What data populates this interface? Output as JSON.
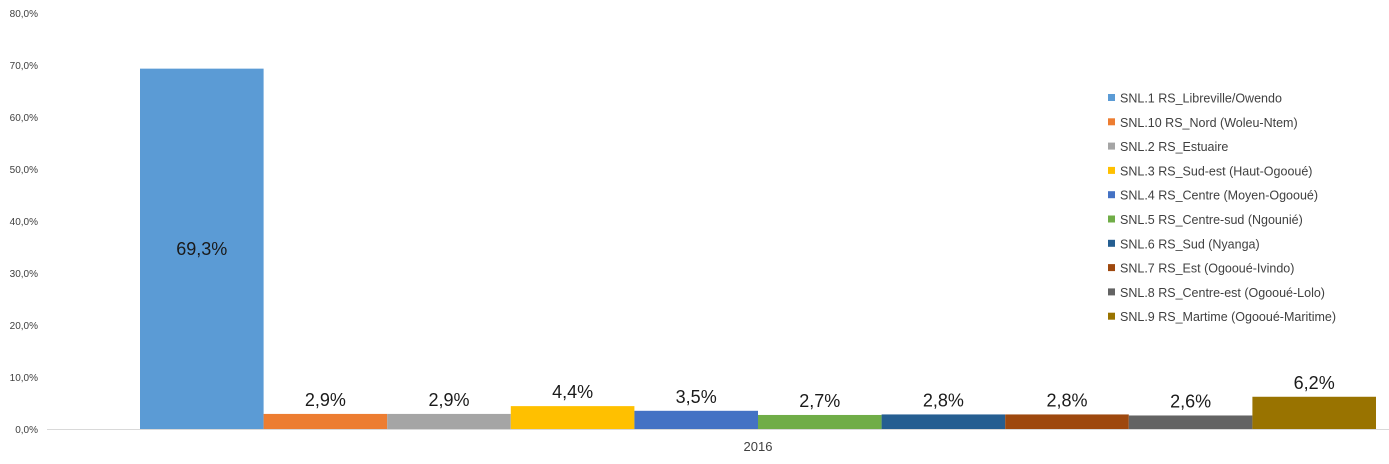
{
  "chart_data": {
    "type": "bar",
    "title": "",
    "xlabel": "",
    "ylabel": "",
    "categories": [
      "2016"
    ],
    "ylim": [
      0,
      80
    ],
    "y_ticks": [
      "0,0%",
      "10,0%",
      "20,0%",
      "30,0%",
      "40,0%",
      "50,0%",
      "60,0%",
      "70,0%",
      "80,0%"
    ],
    "grid": false,
    "legend_position": "right",
    "series": [
      {
        "name": "SNL.1 RS_Libreville/Owendo",
        "values": [
          69.3
        ],
        "label": "69,3%",
        "color": "#5B9BD5"
      },
      {
        "name": "SNL.10 RS_Nord (Woleu-Ntem)",
        "values": [
          2.9
        ],
        "label": "2,9%",
        "color": "#ED7D31"
      },
      {
        "name": "SNL.2 RS_Estuaire",
        "values": [
          2.9
        ],
        "label": "2,9%",
        "color": "#A5A5A5"
      },
      {
        "name": "SNL.3 RS_Sud-est (Haut-Ogooué)",
        "values": [
          4.4
        ],
        "label": "4,4%",
        "color": "#FFC000"
      },
      {
        "name": "SNL.4 RS_Centre (Moyen-Ogooué)",
        "values": [
          3.5
        ],
        "label": "3,5%",
        "color": "#4472C4"
      },
      {
        "name": "SNL.5 RS_Centre-sud (Ngounié)",
        "values": [
          2.7
        ],
        "label": "2,7%",
        "color": "#70AD47"
      },
      {
        "name": "SNL.6 RS_Sud (Nyanga)",
        "values": [
          2.8
        ],
        "label": "2,8%",
        "color": "#255E91"
      },
      {
        "name": "SNL.7 RS_Est (Ogooué-Ivindo)",
        "values": [
          2.8
        ],
        "label": "2,8%",
        "color": "#9E480E"
      },
      {
        "name": "SNL.8 RS_Centre-est (Ogooué-Lolo)",
        "values": [
          2.6
        ],
        "label": "2,6%",
        "color": "#636363"
      },
      {
        "name": "SNL.9 RS_Martime (Ogooué-Maritime)",
        "values": [
          6.2
        ],
        "label": "6,2%",
        "color": "#997300"
      }
    ]
  }
}
